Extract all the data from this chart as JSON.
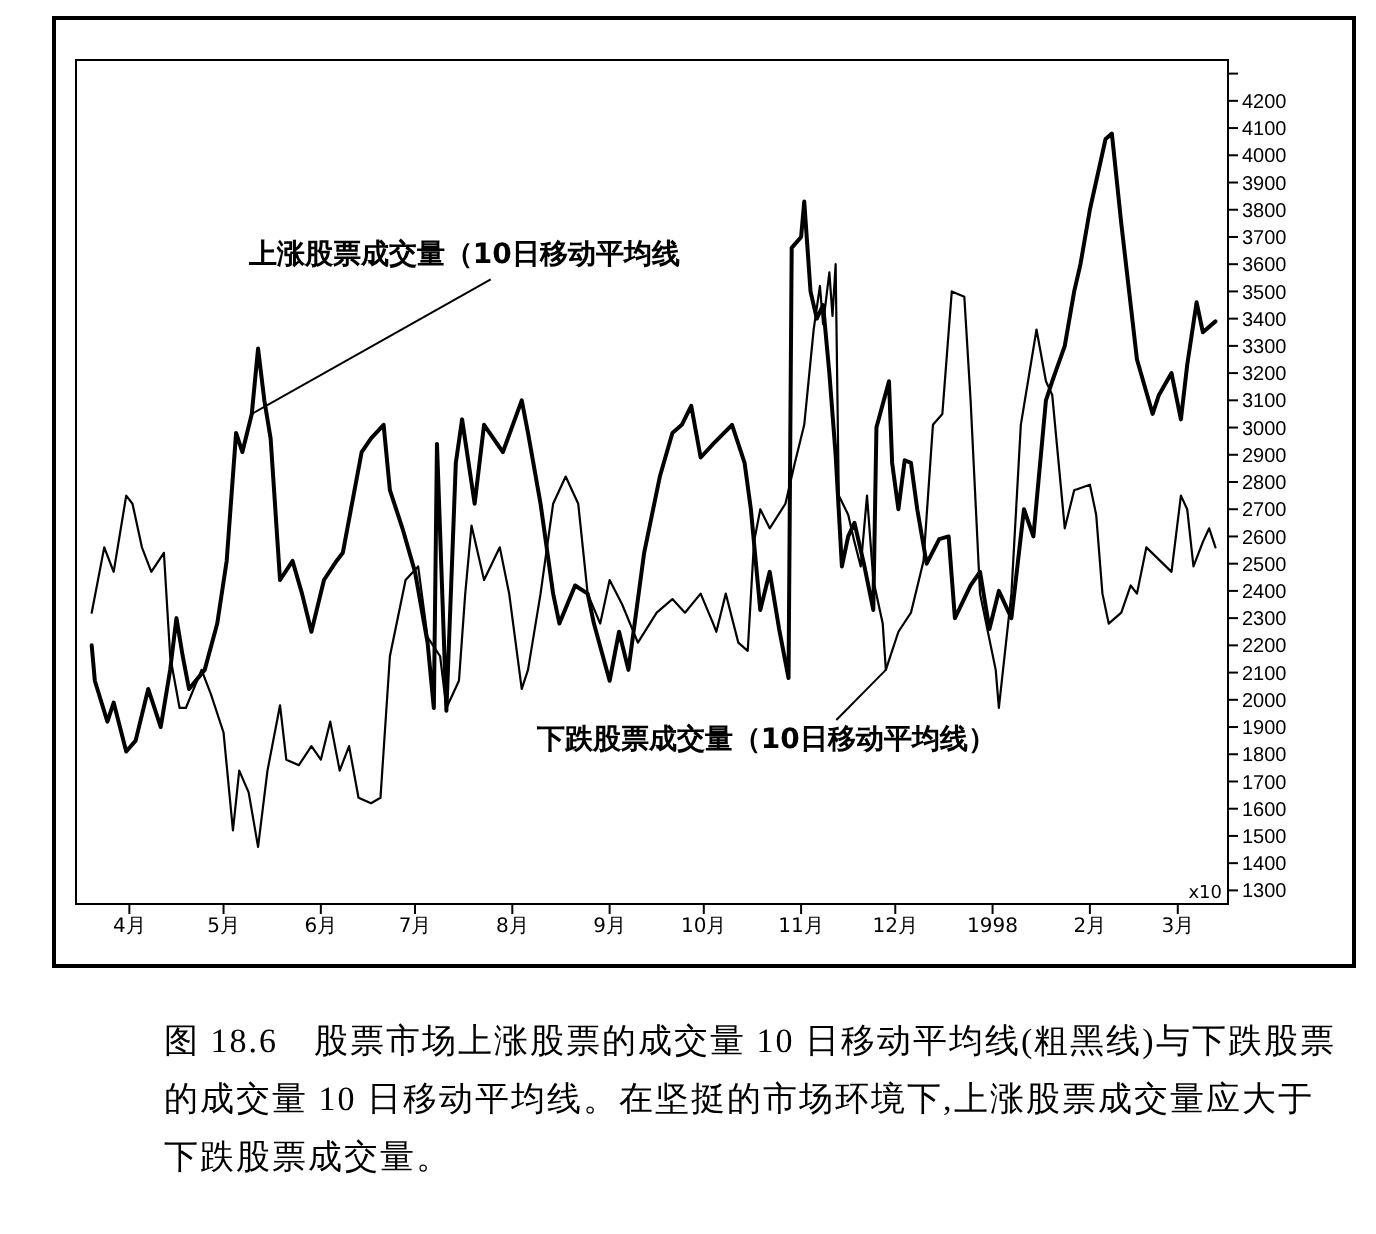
{
  "chart_data": {
    "type": "line",
    "ylabel": "x10",
    "grid": false,
    "marker": "none",
    "line_style": "solid",
    "xlim": [
      "1997-03-15",
      "1998-03-17"
    ],
    "xticks": [
      {
        "value": "1997-04-01",
        "label": "4月"
      },
      {
        "value": "1997-05-01",
        "label": "5月"
      },
      {
        "value": "1997-06-01",
        "label": "6月"
      },
      {
        "value": "1997-07-01",
        "label": "7月"
      },
      {
        "value": "1997-08-01",
        "label": "8月"
      },
      {
        "value": "1997-09-01",
        "label": "9月"
      },
      {
        "value": "1997-10-01",
        "label": "10月"
      },
      {
        "value": "1997-11-01",
        "label": "11月"
      },
      {
        "value": "1997-12-01",
        "label": "12月"
      },
      {
        "value": "1998-01-01",
        "label": "1998"
      },
      {
        "value": "1998-02-01",
        "label": "2月"
      },
      {
        "value": "1998-03-01",
        "label": "3月"
      }
    ],
    "ylim": [
      1250,
      4350
    ],
    "yticks": [
      1300,
      1400,
      1500,
      1600,
      1700,
      1800,
      1900,
      2000,
      2100,
      2200,
      2300,
      2400,
      2500,
      2600,
      2700,
      2800,
      2900,
      3000,
      3100,
      3200,
      3300,
      3400,
      3500,
      3600,
      3700,
      3800,
      3900,
      4000,
      4100,
      4200,
      {
        "value": 4300,
        "label": null
      }
    ],
    "series": [
      {
        "name": "上涨股票成交量（10日移动平均线",
        "color": "#000000",
        "x": [
          "1997-03-20",
          "1997-03-21",
          "1997-03-25",
          "1997-03-27",
          "1997-03-31",
          "1997-04-03",
          "1997-04-07",
          "1997-04-11",
          "1997-04-14",
          "1997-04-16",
          "1997-04-18",
          "1997-04-20",
          "1997-04-25",
          "1997-04-29",
          "1997-05-02",
          "1997-05-05",
          "1997-05-07",
          "1997-05-10",
          "1997-05-12",
          "1997-05-14",
          "1997-05-16",
          "1997-05-19",
          "1997-05-23",
          "1997-05-26",
          "1997-05-29",
          "1997-06-02",
          "1997-06-06",
          "1997-06-08",
          "1997-06-14",
          "1997-06-17",
          "1997-06-21",
          "1997-06-23",
          "1997-06-27",
          "1997-07-01",
          "1997-07-05",
          "1997-07-07",
          "1997-07-08",
          "1997-07-11",
          "1997-07-14",
          "1997-07-16",
          "1997-07-20",
          "1997-07-23",
          "1997-07-29",
          "1997-08-04",
          "1997-08-06",
          "1997-08-10",
          "1997-08-14",
          "1997-08-16",
          "1997-08-21",
          "1997-08-25",
          "1997-08-27",
          "1997-09-01",
          "1997-09-04",
          "1997-09-07",
          "1997-09-12",
          "1997-09-17",
          "1997-09-21",
          "1997-09-24",
          "1997-09-27",
          "1997-09-30",
          "1997-10-04",
          "1997-10-10",
          "1997-10-14",
          "1997-10-16",
          "1997-10-19",
          "1997-10-22",
          "1997-10-25",
          "1997-10-28",
          "1997-10-29",
          "1997-11-01",
          "1997-11-02",
          "1997-11-04",
          "1997-11-06",
          "1997-11-08",
          "1997-11-10",
          "1997-11-12",
          "1997-11-14",
          "1997-11-16",
          "1997-11-18",
          "1997-11-21",
          "1997-11-24",
          "1997-11-25",
          "1997-11-29",
          "1997-11-30",
          "1997-12-02",
          "1997-12-04",
          "1997-12-06",
          "1997-12-08",
          "1997-12-11",
          "1997-12-15",
          "1997-12-18",
          "1997-12-20",
          "1997-12-25",
          "1997-12-28",
          "1997-12-31",
          "1998-01-03",
          "1998-01-07",
          "1998-01-11",
          "1998-01-14",
          "1998-01-18",
          "1998-01-20",
          "1998-01-24",
          "1998-01-27",
          "1998-01-29",
          "1998-02-01",
          "1998-02-06",
          "1998-02-08",
          "1998-02-11",
          "1998-02-14",
          "1998-02-16",
          "1998-02-21",
          "1998-02-23",
          "1998-02-27",
          "1998-03-02",
          "1998-03-04",
          "1998-03-07",
          "1998-03-09",
          "1998-03-13"
        ],
        "values": [
          2200,
          2070,
          1920,
          1990,
          1810,
          1850,
          2040,
          1900,
          2110,
          2300,
          2160,
          2040,
          2110,
          2280,
          2510,
          2980,
          2910,
          3050,
          3290,
          3100,
          2960,
          2440,
          2510,
          2390,
          2250,
          2440,
          2510,
          2540,
          2910,
          2960,
          3010,
          2770,
          2630,
          2470,
          2210,
          1970,
          2940,
          1960,
          2870,
          3030,
          2720,
          3010,
          2910,
          3100,
          2980,
          2720,
          2390,
          2280,
          2420,
          2390,
          2280,
          2070,
          2250,
          2110,
          2540,
          2820,
          2980,
          3010,
          3080,
          2890,
          2940,
          3010,
          2870,
          2700,
          2330,
          2470,
          2260,
          2080,
          3660,
          3700,
          3830,
          3500,
          3400,
          3450,
          3200,
          2900,
          2490,
          2600,
          2650,
          2500,
          2330,
          3000,
          3170,
          2870,
          2700,
          2880,
          2870,
          2700,
          2500,
          2590,
          2600,
          2300,
          2420,
          2470,
          2260,
          2400,
          2300,
          2700,
          2600,
          3100,
          3170,
          3300,
          3500,
          3600,
          3800,
          4060,
          4080,
          3750,
          3450,
          3250,
          3050,
          3120,
          3200,
          3030,
          3230,
          3460,
          3350,
          3390
        ]
      },
      {
        "name": "下跌股票成交量（10日移动平均线）",
        "color": "#000000",
        "x": [
          "1997-03-20",
          "1997-03-24",
          "1997-03-27",
          "1997-03-31",
          "1997-04-02",
          "1997-04-05",
          "1997-04-08",
          "1997-04-12",
          "1997-04-14",
          "1997-04-17",
          "1997-04-19",
          "1997-04-24",
          "1997-04-27",
          "1997-05-01",
          "1997-05-04",
          "1997-05-06",
          "1997-05-09",
          "1997-05-12",
          "1997-05-15",
          "1997-05-19",
          "1997-05-21",
          "1997-05-25",
          "1997-05-29",
          "1997-06-01",
          "1997-06-04",
          "1997-06-07",
          "1997-06-10",
          "1997-06-13",
          "1997-06-17",
          "1997-06-20",
          "1997-06-23",
          "1997-06-28",
          "1997-07-02",
          "1997-07-05",
          "1997-07-09",
          "1997-07-11",
          "1997-07-15",
          "1997-07-17",
          "1997-07-19",
          "1997-07-23",
          "1997-07-28",
          "1997-07-31",
          "1997-08-04",
          "1997-08-06",
          "1997-08-10",
          "1997-08-14",
          "1997-08-18",
          "1997-08-22",
          "1997-08-25",
          "1997-08-29",
          "1997-09-01",
          "1997-09-05",
          "1997-09-10",
          "1997-09-16",
          "1997-09-21",
          "1997-09-25",
          "1997-09-30",
          "1997-10-04",
          "1997-10-05",
          "1997-10-08",
          "1997-10-12",
          "1997-10-15",
          "1997-10-17",
          "1997-10-19",
          "1997-10-22",
          "1997-10-27",
          "1997-10-30",
          "1997-11-02",
          "1997-11-05",
          "1997-11-07",
          "1997-11-08",
          "1997-11-10",
          "1997-11-11",
          "1997-11-12",
          "1997-11-13",
          "1997-11-16",
          "1997-11-18",
          "1997-11-20",
          "1997-11-22",
          "1997-11-24",
          "1997-11-27",
          "1997-11-28",
          "1997-12-02",
          "1997-12-06",
          "1997-12-10",
          "1997-12-13",
          "1997-12-16",
          "1997-12-19",
          "1997-12-23",
          "1997-12-25",
          "1997-12-28",
          "1998-01-02",
          "1998-01-03",
          "1998-01-07",
          "1998-01-10",
          "1998-01-15",
          "1998-01-18",
          "1998-01-20",
          "1998-01-24",
          "1998-01-27",
          "1998-02-01",
          "1998-02-03",
          "1998-02-05",
          "1998-02-07",
          "1998-02-11",
          "1998-02-14",
          "1998-02-16",
          "1998-02-19",
          "1998-02-27",
          "1998-03-02",
          "1998-03-04",
          "1998-03-06",
          "1998-03-09",
          "1998-03-11",
          "1998-03-13"
        ],
        "values": [
          2320,
          2560,
          2470,
          2750,
          2720,
          2560,
          2470,
          2540,
          2160,
          1970,
          1970,
          2110,
          2020,
          1880,
          1520,
          1740,
          1660,
          1460,
          1740,
          1980,
          1780,
          1760,
          1830,
          1780,
          1920,
          1740,
          1830,
          1640,
          1620,
          1640,
          2160,
          2440,
          2490,
          2230,
          2160,
          1970,
          2070,
          2390,
          2640,
          2440,
          2560,
          2390,
          2040,
          2110,
          2390,
          2720,
          2820,
          2720,
          2390,
          2280,
          2440,
          2350,
          2210,
          2320,
          2370,
          2320,
          2390,
          2280,
          2250,
          2390,
          2210,
          2180,
          2580,
          2700,
          2630,
          2720,
          2870,
          3010,
          3360,
          3520,
          3380,
          3570,
          3410,
          3600,
          2750,
          2680,
          2580,
          2490,
          2750,
          2440,
          2280,
          2110,
          2250,
          2320,
          2510,
          3010,
          3050,
          3500,
          3480,
          3100,
          2390,
          2110,
          1970,
          2390,
          3010,
          3360,
          3170,
          3120,
          2630,
          2770,
          2790,
          2680,
          2390,
          2280,
          2320,
          2420,
          2390,
          2560,
          2470,
          2750,
          2700,
          2490,
          2580,
          2630,
          2560
        ]
      }
    ],
    "annotations": [
      "图 18.6　股票市场上涨股票的成交量 10 日移动平均线(粗黑线)与下跌股票的成交量 10 日移动平均线。在坚挺的市场环境下,上涨股票成交量应大于下跌股票成交量。"
    ]
  }
}
